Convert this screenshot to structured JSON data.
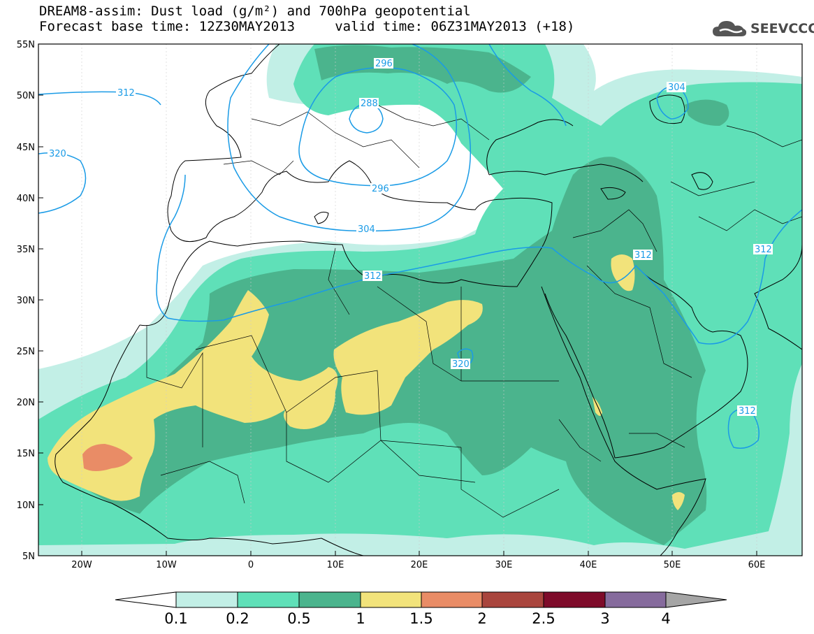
{
  "title_line1": "DREAM8-assim: Dust load (g/m²) and 700hPa geopotential",
  "title_line2": "Forecast base time: 12Z30MAY2013     valid time: 06Z31MAY2013 (+18)",
  "brand": "SEEVCCC",
  "brand_icon": "cloud-logo-icon",
  "lat_labels": [
    "55N",
    "50N",
    "45N",
    "40N",
    "35N",
    "30N",
    "25N",
    "20N",
    "15N",
    "10N",
    "5N"
  ],
  "lon_labels": [
    "20W",
    "10W",
    "0",
    "10E",
    "20E",
    "30E",
    "40E",
    "50E",
    "60E"
  ],
  "contour_labels": [
    "296",
    "288",
    "312",
    "304",
    "320",
    "296",
    "304",
    "312",
    "312",
    "312",
    "320",
    "312"
  ],
  "colorbar": {
    "labels": [
      "0.1",
      "0.2",
      "0.5",
      "1",
      "1.5",
      "2",
      "2.5",
      "3",
      "4"
    ],
    "colors": [
      "#ffffff",
      "#c2efe6",
      "#5fe0b8",
      "#4bb48d",
      "#f2e37b",
      "#e98c66",
      "#a9453d",
      "#7e0b2a",
      "#866b9d",
      "#a5a5a5"
    ]
  },
  "dust_colors": {
    "lvl1": "#c2efe6",
    "lvl2": "#5fe0b8",
    "lvl3": "#4bb48d",
    "lvl4": "#f2e37b",
    "lvl5": "#e98c66",
    "contour": "#1a9be6",
    "border": "#000000"
  }
}
